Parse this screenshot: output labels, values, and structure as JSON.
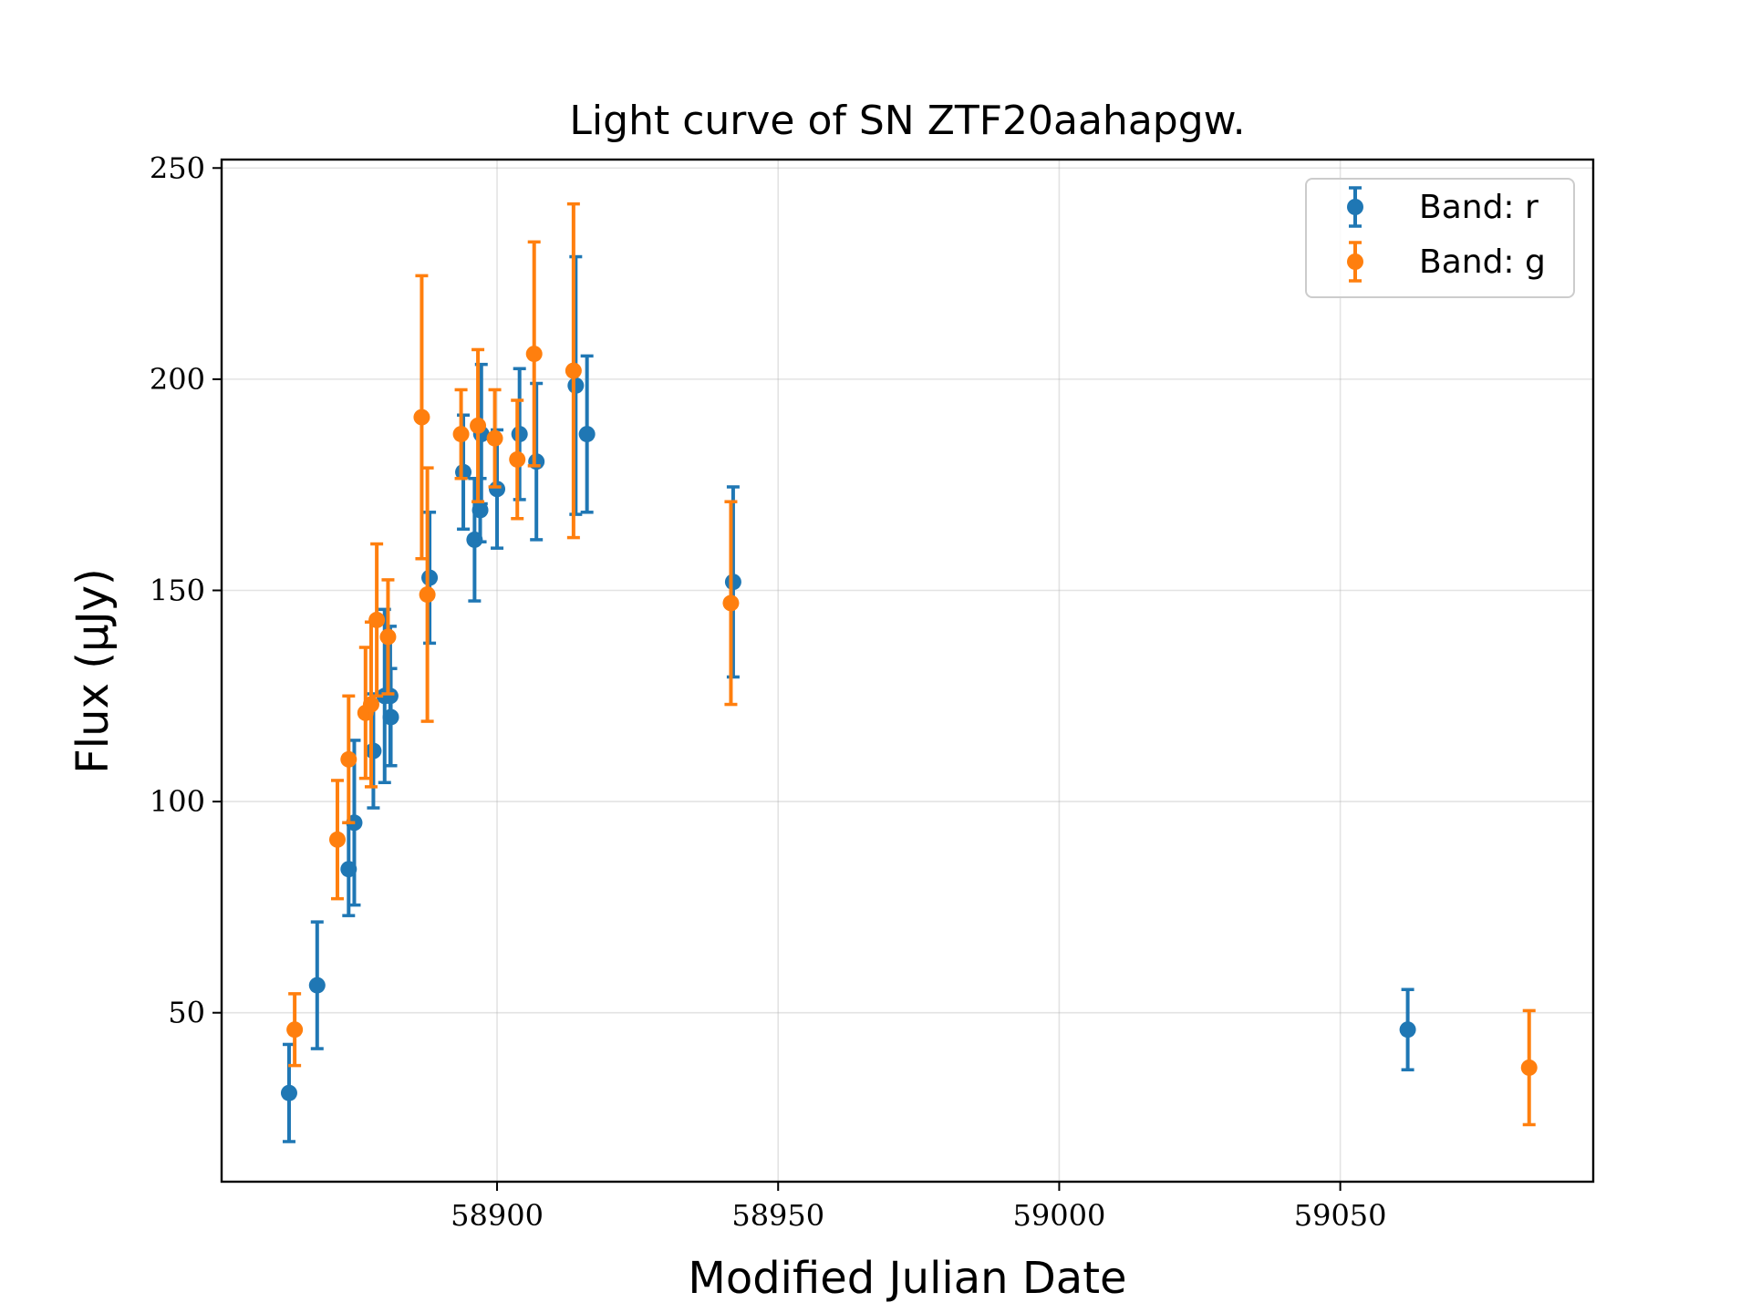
{
  "chart_data": {
    "type": "scatter",
    "title": "Light curve of SN ZTF20aahapgw.",
    "xlabel": "Modified Julian Date",
    "ylabel": "Flux (μJy)",
    "xlim": [
      58851,
      59095
    ],
    "ylim": [
      10,
      252
    ],
    "xticks": [
      58900,
      58950,
      59000,
      59050
    ],
    "yticks": [
      50,
      100,
      150,
      200,
      250
    ],
    "grid": true,
    "legend_position": "top-right",
    "series": [
      {
        "name": "Band: r",
        "color": "#1f77b4",
        "x": [
          58863.0,
          58868.0,
          58873.6,
          58874.6,
          58878.0,
          58880.0,
          58881.0,
          58881.1,
          58888.0,
          58894.0,
          58896.0,
          58897.0,
          58897.2,
          58900.0,
          58904.0,
          58907.0,
          58914.0,
          58916.0,
          58942.0,
          59062.0
        ],
        "y": [
          31,
          56.5,
          84,
          95,
          112,
          125,
          125,
          120,
          153,
          178,
          162,
          169,
          187,
          174,
          187,
          180.5,
          198.5,
          187,
          152,
          46
        ],
        "err": [
          11.5,
          15,
          11,
          19.5,
          13.5,
          20.5,
          16.5,
          11.5,
          15.5,
          13.5,
          14.5,
          7.5,
          16.5,
          14,
          15.5,
          18.5,
          30.5,
          18.5,
          22.5,
          9.5
        ]
      },
      {
        "name": "Band: g",
        "color": "#ff7f0e",
        "x": [
          58864.0,
          58871.6,
          58873.6,
          58876.6,
          58877.6,
          58878.6,
          58880.6,
          58886.6,
          58887.6,
          58893.6,
          58896.6,
          58899.6,
          58903.6,
          58906.6,
          58913.6,
          58941.6,
          59083.6
        ],
        "y": [
          46,
          91,
          110,
          121,
          123,
          143,
          139,
          191,
          149,
          187,
          189,
          186,
          181,
          206,
          202,
          147,
          37
        ],
        "err": [
          8.5,
          14,
          15,
          15.5,
          19.5,
          18,
          13.5,
          33.5,
          30,
          10.5,
          18,
          11.5,
          14,
          26.5,
          39.5,
          24,
          13.5
        ]
      }
    ]
  }
}
